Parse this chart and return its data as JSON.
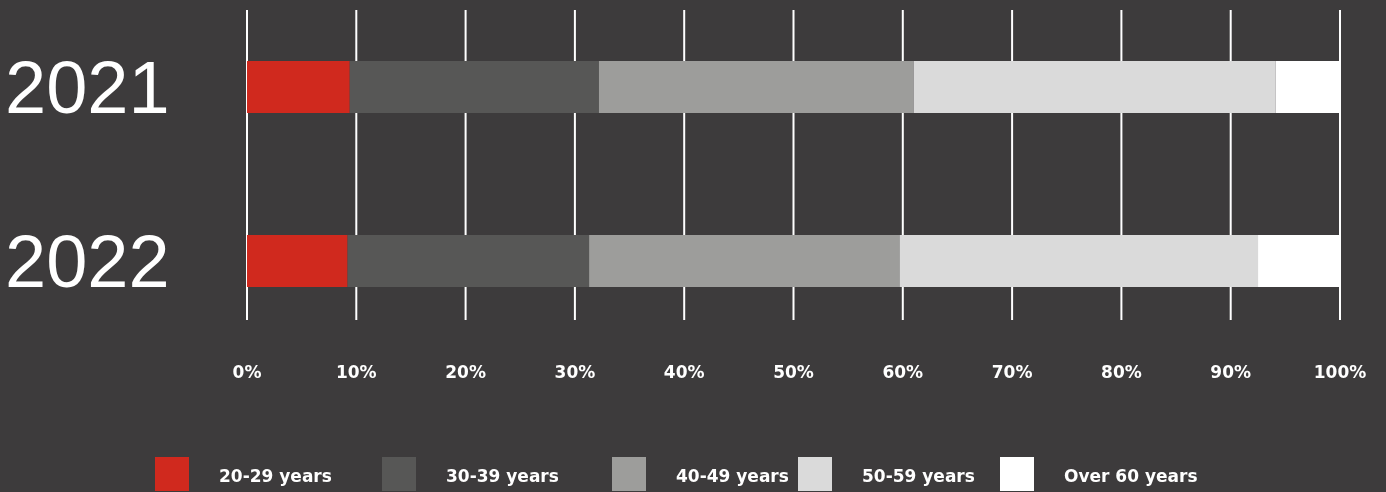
{
  "chart_data": {
    "type": "bar",
    "orientation": "horizontal",
    "stacked": true,
    "categories": [
      "2021",
      "2022"
    ],
    "series": [
      {
        "name": "20-29 years",
        "color": "#d0291e",
        "values": [
          9.4,
          9.2
        ]
      },
      {
        "name": "30-39 years",
        "color": "#575756",
        "values": [
          22.8,
          22.1
        ]
      },
      {
        "name": "40-49 years",
        "color": "#9d9d9b",
        "values": [
          28.8,
          28.4
        ]
      },
      {
        "name": "50-59 years",
        "color": "#dadada",
        "values": [
          33.1,
          32.8
        ]
      },
      {
        "name": "Over 60 years",
        "color": "#ffffff",
        "values": [
          5.9,
          7.5
        ]
      }
    ],
    "xlim": [
      0,
      100
    ],
    "xticks": [
      {
        "value": 0,
        "label": "0%"
      },
      {
        "value": 10,
        "label": "10%"
      },
      {
        "value": 20,
        "label": "20%"
      },
      {
        "value": 30,
        "label": "30%"
      },
      {
        "value": 40,
        "label": "40%"
      },
      {
        "value": 50,
        "label": "50%"
      },
      {
        "value": 60,
        "label": "60%"
      },
      {
        "value": 70,
        "label": "70%"
      },
      {
        "value": 80,
        "label": "80%"
      },
      {
        "value": 90,
        "label": "90%"
      },
      {
        "value": 100,
        "label": "100%"
      }
    ],
    "grid": "x",
    "legend": "bottom"
  }
}
